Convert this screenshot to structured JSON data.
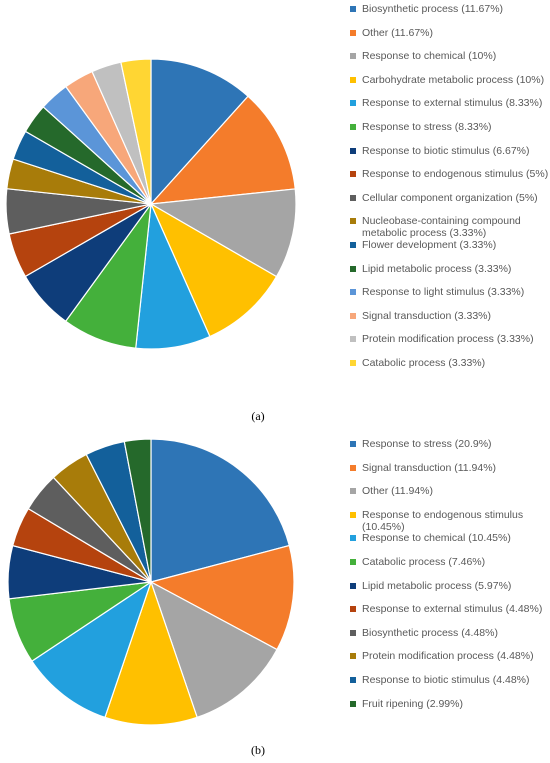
{
  "chart_data": [
    {
      "type": "pie",
      "panel_label": "(a)",
      "start": "12 o'clock, clockwise",
      "legend_position": "right",
      "slices": [
        {
          "label": "Biosynthetic process (11.67%)",
          "value": 11.67,
          "color": "#2e75b6"
        },
        {
          "label": "Other (11.67%)",
          "value": 11.67,
          "color": "#f47c2b"
        },
        {
          "label": "Response to chemical (10%)",
          "value": 10,
          "color": "#a5a5a5"
        },
        {
          "label": "Carbohydrate metabolic process (10%)",
          "value": 10,
          "color": "#ffc000"
        },
        {
          "label": "Response to external stimulus (8.33%)",
          "value": 8.33,
          "color": "#22a0de"
        },
        {
          "label": "Response to stress (8.33%)",
          "value": 8.33,
          "color": "#44b03b"
        },
        {
          "label": "Response to biotic stimulus (6.67%)",
          "value": 6.67,
          "color": "#0e3d7a"
        },
        {
          "label": "Response to endogenous stimulus (5%)",
          "value": 5,
          "color": "#b5430e"
        },
        {
          "label": "Cellular component organization (5%)",
          "value": 5,
          "color": "#5e5e5e"
        },
        {
          "label": "Nucleobase-containing compound metabolic process (3.33%)",
          "value": 3.33,
          "color": "#a87c0a"
        },
        {
          "label": "Flower development (3.33%)",
          "value": 3.33,
          "color": "#13609b"
        },
        {
          "label": "Lipid metabolic process (3.33%)",
          "value": 3.33,
          "color": "#25692b"
        },
        {
          "label": "Response to light stimulus (3.33%)",
          "value": 3.33,
          "color": "#5b95d8"
        },
        {
          "label": "Signal transduction (3.33%)",
          "value": 3.33,
          "color": "#f7a77a"
        },
        {
          "label": "Protein modification process (3.33%)",
          "value": 3.33,
          "color": "#c0c0c0"
        },
        {
          "label": "Catabolic process (3.33%)",
          "value": 3.33,
          "color": "#ffd633"
        }
      ]
    },
    {
      "type": "pie",
      "panel_label": "(b)",
      "start": "12 o'clock, clockwise",
      "legend_position": "right",
      "slices": [
        {
          "label": "Response to stress (20.9%)",
          "value": 20.9,
          "color": "#2e75b6"
        },
        {
          "label": "Signal transduction (11.94%)",
          "value": 11.94,
          "color": "#f47c2b"
        },
        {
          "label": "Other (11.94%)",
          "value": 11.94,
          "color": "#a5a5a5"
        },
        {
          "label": "Response to endogenous stimulus (10.45%)",
          "value": 10.45,
          "color": "#ffc000"
        },
        {
          "label": "Response to chemical (10.45%)",
          "value": 10.45,
          "color": "#22a0de"
        },
        {
          "label": "Catabolic process (7.46%)",
          "value": 7.46,
          "color": "#44b03b"
        },
        {
          "label": "Lipid metabolic process (5.97%)",
          "value": 5.97,
          "color": "#0e3d7a"
        },
        {
          "label": "Response to external stimulus (4.48%)",
          "value": 4.48,
          "color": "#b5430e"
        },
        {
          "label": "Biosynthetic process (4.48%)",
          "value": 4.48,
          "color": "#5e5e5e"
        },
        {
          "label": "Protein modification process (4.48%)",
          "value": 4.48,
          "color": "#a87c0a"
        },
        {
          "label": "Response to biotic stimulus (4.48%)",
          "value": 4.48,
          "color": "#13609b"
        },
        {
          "label": "Fruit ripening (2.99%)",
          "value": 2.99,
          "color": "#25692b"
        }
      ]
    }
  ]
}
